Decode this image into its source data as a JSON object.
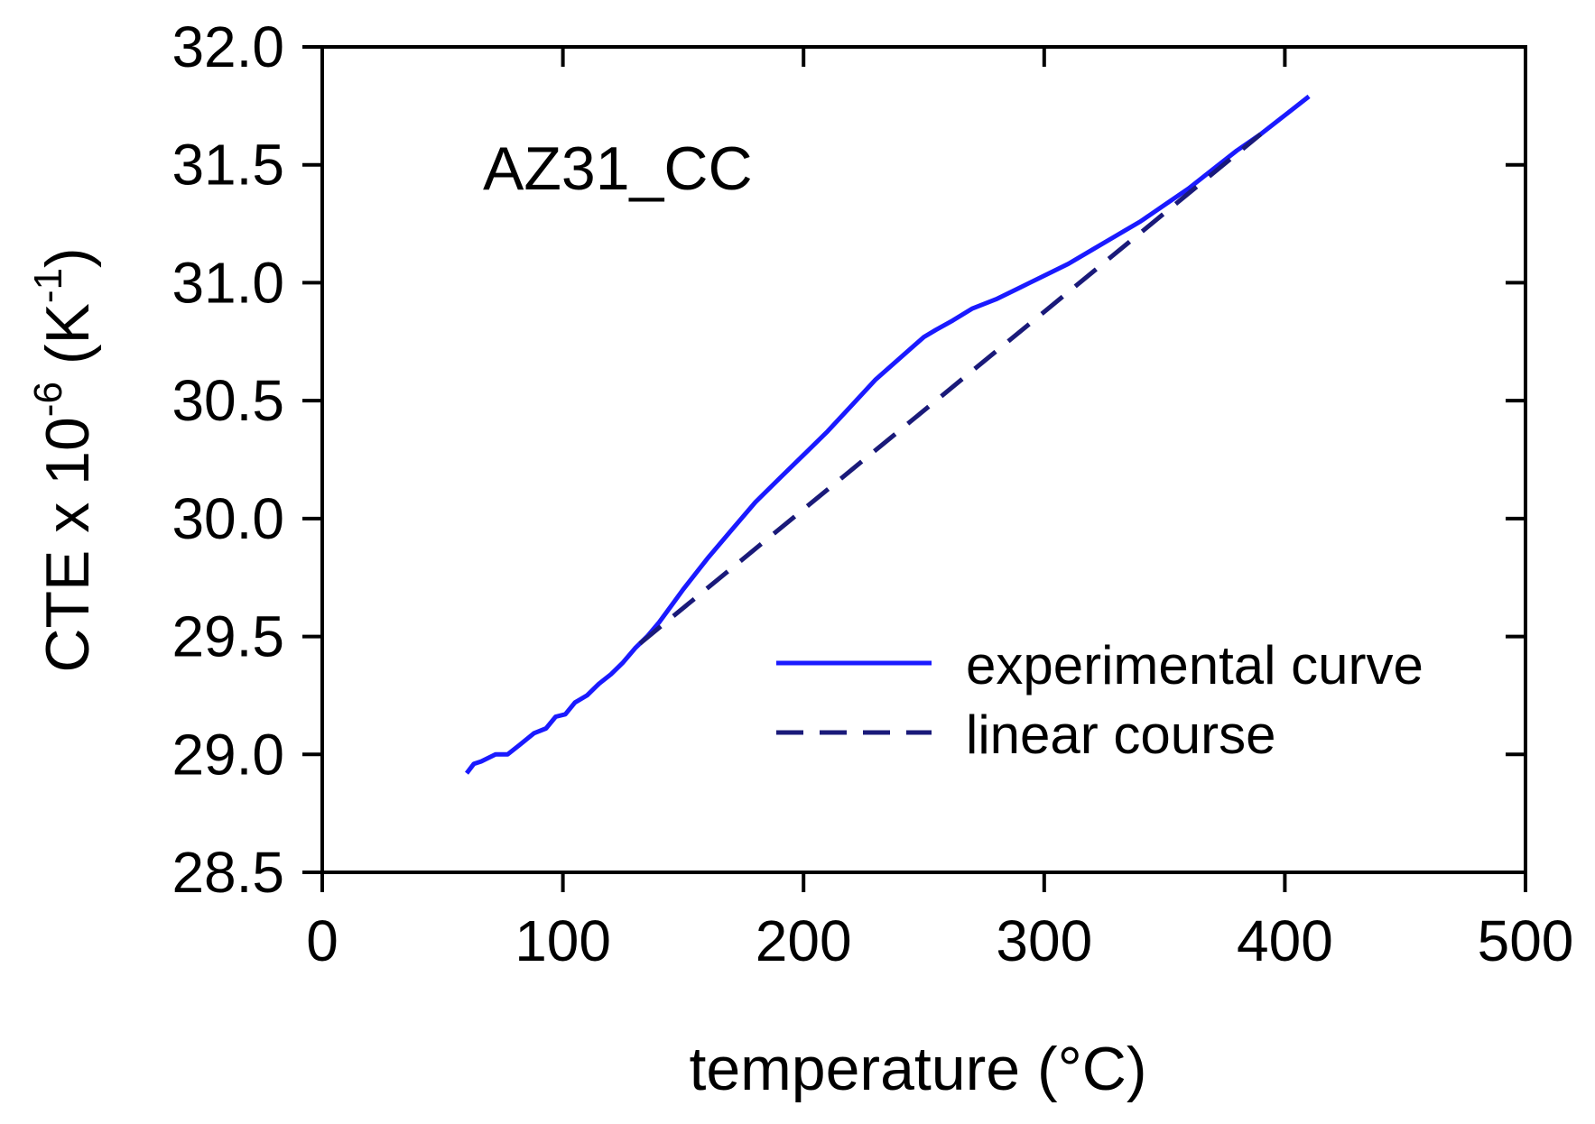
{
  "chart_data": {
    "type": "line",
    "title": "",
    "annotation": "AZ31_CC",
    "xlabel": "temperature (°C)",
    "ylabel": {
      "base": "CTE x 10",
      "exponent": "-6",
      "unit_open": " (K",
      "unit_exponent": "-1",
      "unit_close": ")"
    },
    "xlim": [
      0,
      500
    ],
    "ylim": [
      28.5,
      32.0
    ],
    "x_ticks": [
      0,
      100,
      200,
      300,
      400,
      500
    ],
    "x_tick_labels": [
      "0",
      "100",
      "200",
      "300",
      "400",
      "500"
    ],
    "y_ticks": [
      28.5,
      29.0,
      29.5,
      30.0,
      30.5,
      31.0,
      31.5,
      32.0
    ],
    "y_tick_labels": [
      "28.5",
      "29.0",
      "29.5",
      "30.0",
      "30.5",
      "31.0",
      "31.5",
      "32.0"
    ],
    "grid": false,
    "legend_position": "bottom-right",
    "series": [
      {
        "name": "experimental curve",
        "style": "solid",
        "color": "#1a1aff",
        "x": [
          60,
          63,
          66,
          72,
          77,
          82,
          88,
          93,
          97,
          101,
          105,
          110,
          115,
          120,
          125,
          130,
          135,
          140,
          145,
          150,
          160,
          170,
          180,
          190,
          200,
          210,
          220,
          230,
          240,
          250,
          255,
          262,
          270,
          280,
          290,
          300,
          310,
          320,
          330,
          340,
          350,
          360,
          370,
          380,
          390,
          400,
          410
        ],
        "y": [
          28.92,
          28.96,
          28.97,
          29.0,
          29.0,
          29.04,
          29.09,
          29.11,
          29.16,
          29.17,
          29.22,
          29.25,
          29.3,
          29.34,
          29.39,
          29.45,
          29.5,
          29.56,
          29.63,
          29.7,
          29.83,
          29.95,
          30.07,
          30.17,
          30.27,
          30.37,
          30.48,
          30.59,
          30.68,
          30.77,
          30.8,
          30.84,
          30.89,
          30.93,
          30.98,
          31.03,
          31.08,
          31.14,
          31.2,
          31.26,
          31.33,
          31.4,
          31.48,
          31.56,
          31.63,
          31.71,
          31.79
        ]
      },
      {
        "name": "linear course",
        "style": "dashed",
        "color": "#1a1a7a",
        "x": [
          132,
          390
        ],
        "y": [
          29.47,
          31.63
        ]
      }
    ]
  }
}
